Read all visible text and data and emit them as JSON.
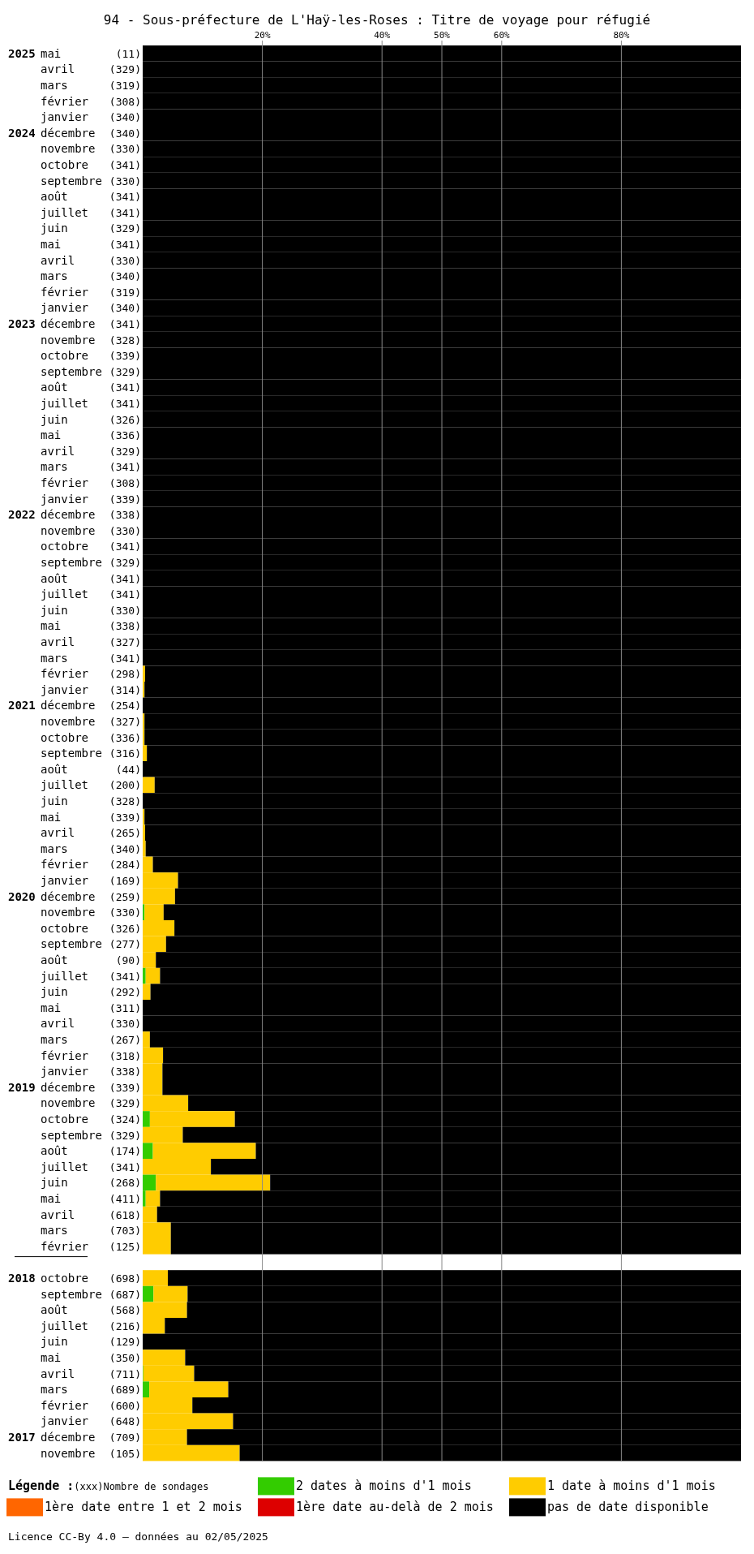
{
  "chart_data": {
    "type": "bar",
    "orientation": "horizontal",
    "stacked": true,
    "title": "94 - Sous-préfecture de L'Haÿ-les-Roses : Titre de voyage pour réfugié",
    "categories": [
      "2025 mai (11)",
      "avril (329)",
      "mars (319)",
      "février (308)",
      "janvier (340)",
      "2024 décembre (340)",
      "novembre (330)",
      "octobre (341)",
      "septembre (330)",
      "août (341)",
      "juillet (341)",
      "juin (329)",
      "mai (341)",
      "avril (330)",
      "mars (340)",
      "février (319)",
      "janvier (340)",
      "2023 décembre (341)",
      "novembre (328)",
      "octobre (339)",
      "septembre (329)",
      "août (341)",
      "juillet (341)",
      "juin (326)",
      "mai (336)",
      "avril (329)",
      "mars (341)",
      "février (308)",
      "janvier (339)",
      "2022 décembre (338)",
      "novembre (330)",
      "octobre (341)",
      "septembre (329)",
      "août (341)",
      "juillet (341)",
      "juin (330)",
      "mai (338)",
      "avril (327)",
      "mars (341)",
      "février (298)",
      "janvier (314)",
      "2021 décembre (254)",
      "novembre (327)",
      "octobre (336)",
      "septembre (316)",
      "août (44)",
      "juillet (200)",
      "juin (328)",
      "mai (339)",
      "avril (265)",
      "mars (340)",
      "février (284)",
      "janvier (169)",
      "2020 décembre (259)",
      "novembre (330)",
      "octobre (326)",
      "septembre (277)",
      "août (90)",
      "juillet (341)",
      "juin (292)",
      "mai (311)",
      "avril (330)",
      "mars (267)",
      "février (318)",
      "janvier (338)",
      "2019 décembre (339)",
      "novembre (329)",
      "octobre (324)",
      "septembre (329)",
      "août (174)",
      "juillet (341)",
      "juin (268)",
      "mai (411)",
      "avril (618)",
      "mars (703)",
      "février (125)",
      null,
      "2018 octobre (698)",
      "septembre (687)",
      "août (568)",
      "juillet (216)",
      "juin (129)",
      "mai (350)",
      "avril (711)",
      "mars (689)",
      "février (600)",
      "janvier (648)",
      "2017 décembre (709)",
      "novembre (105)"
    ],
    "series": [
      {
        "name": "2 dates à moins d'1 mois",
        "color": "#33cc00",
        "values": [
          0,
          0,
          0,
          0,
          0,
          0,
          0,
          0,
          0,
          0,
          0,
          0,
          0,
          0,
          0,
          0,
          0,
          0,
          0,
          0,
          0,
          0,
          0,
          0,
          0,
          0,
          0,
          0,
          0,
          0,
          0,
          0,
          0,
          0,
          0,
          0,
          0,
          0,
          0,
          0,
          0,
          0,
          0,
          0,
          0,
          0,
          0,
          0,
          0,
          0,
          0,
          0,
          0,
          0,
          0.3,
          0,
          0,
          0,
          0.5,
          0,
          0,
          0,
          0,
          0,
          0,
          0,
          0,
          1.2,
          0,
          1.7,
          0,
          2.2,
          0.5,
          0,
          0,
          0,
          null,
          0,
          1.8,
          0,
          0,
          0,
          0,
          0.1,
          1.1,
          0,
          0,
          0,
          0
        ]
      },
      {
        "name": "1 date à moins d'1 mois",
        "color": "#ffcc00",
        "values": [
          0,
          0,
          0,
          0,
          0,
          0,
          0,
          0,
          0,
          0,
          0,
          0,
          0,
          0,
          0,
          0,
          0,
          0,
          0,
          0,
          0,
          0,
          0,
          0,
          0,
          0,
          0,
          0,
          0,
          0,
          0,
          0,
          0,
          0,
          0,
          0,
          0,
          0,
          0,
          0.4,
          0.3,
          0,
          0.3,
          0.3,
          0.7,
          0,
          2.0,
          0,
          0.3,
          0.4,
          0.5,
          1.7,
          5.9,
          5.4,
          3.2,
          5.3,
          3.9,
          2.2,
          2.4,
          1.3,
          0,
          0,
          1.2,
          3.4,
          3.3,
          3.3,
          7.6,
          14.2,
          6.7,
          17.2,
          11.4,
          19.1,
          2.4,
          2.4,
          4.7,
          4.7,
          null,
          4.2,
          5.7,
          7.4,
          3.7,
          0,
          7.1,
          8.5,
          13.2,
          8.3,
          15.1,
          7.4,
          16.2
        ]
      },
      {
        "name": "1ère date entre 1 et 2 mois",
        "color": "#ff6600",
        "values": [
          0,
          0,
          0,
          0,
          0,
          0,
          0,
          0,
          0,
          0,
          0,
          0,
          0,
          0,
          0,
          0,
          0,
          0,
          0,
          0,
          0,
          0,
          0,
          0,
          0,
          0,
          0,
          0,
          0,
          0,
          0,
          0,
          0,
          0,
          0,
          0,
          0,
          0,
          0,
          0,
          0,
          0,
          0,
          0,
          0,
          0,
          0,
          0,
          0,
          0,
          0,
          0,
          0,
          0,
          0,
          0,
          0,
          0,
          0,
          0,
          0,
          0,
          0,
          0,
          0,
          0,
          0,
          0,
          0,
          0,
          0,
          0,
          0,
          0,
          0,
          0,
          null,
          0,
          0,
          0,
          0,
          0,
          0,
          0,
          0,
          0,
          0,
          0,
          0
        ]
      },
      {
        "name": "1ère date au-delà de 2 mois",
        "color": "#dd0000",
        "values": [
          0,
          0,
          0,
          0,
          0,
          0,
          0,
          0,
          0,
          0,
          0,
          0,
          0,
          0,
          0,
          0,
          0,
          0,
          0,
          0,
          0,
          0,
          0,
          0,
          0,
          0,
          0,
          0,
          0,
          0,
          0,
          0,
          0,
          0,
          0,
          0,
          0,
          0,
          0,
          0,
          0,
          0,
          0,
          0,
          0,
          0,
          0,
          0,
          0,
          0,
          0,
          0,
          0,
          0,
          0,
          0,
          0,
          0,
          0,
          0,
          0,
          0,
          0,
          0,
          0,
          0,
          0,
          0,
          0,
          0,
          0,
          0,
          0,
          0,
          0,
          0,
          null,
          0,
          0,
          0,
          0,
          0,
          0,
          0,
          0,
          0,
          0,
          0,
          0
        ]
      },
      {
        "name": "pas de date disponible",
        "color": "#000000",
        "values": [
          100,
          100,
          100,
          100,
          100,
          100,
          100,
          100,
          100,
          100,
          100,
          100,
          100,
          100,
          100,
          100,
          100,
          100,
          100,
          100,
          100,
          100,
          100,
          100,
          100,
          100,
          100,
          100,
          100,
          100,
          100,
          100,
          100,
          100,
          100,
          100,
          100,
          100,
          100,
          99.6,
          99.7,
          100,
          99.7,
          99.7,
          99.3,
          100,
          98.0,
          100,
          99.7,
          99.6,
          99.5,
          98.3,
          94.1,
          94.6,
          96.5,
          94.7,
          96.1,
          97.8,
          97.1,
          98.7,
          100,
          100,
          98.8,
          96.6,
          96.7,
          96.7,
          92.4,
          84.6,
          93.3,
          81.1,
          88.6,
          78.7,
          97.1,
          97.6,
          95.3,
          95.3,
          null,
          95.8,
          92.5,
          92.6,
          96.3,
          100,
          92.9,
          91.4,
          85.7,
          91.7,
          84.9,
          92.6,
          83.8
        ]
      }
    ],
    "xlim": [
      0,
      100
    ],
    "xticks": [
      {
        "value": 20,
        "label": "20%"
      },
      {
        "value": 40,
        "label": "40%"
      },
      {
        "value": 50,
        "label": "50%"
      },
      {
        "value": 60,
        "label": "60%"
      },
      {
        "value": 80,
        "label": "80%"
      }
    ],
    "grid": "x",
    "legend": "bottom",
    "legend_title": "Légende :",
    "annotations": [
      "(xxx)Nombre de sondages",
      "Licence CC-By 4.0 — données au 02/05/2025"
    ]
  }
}
